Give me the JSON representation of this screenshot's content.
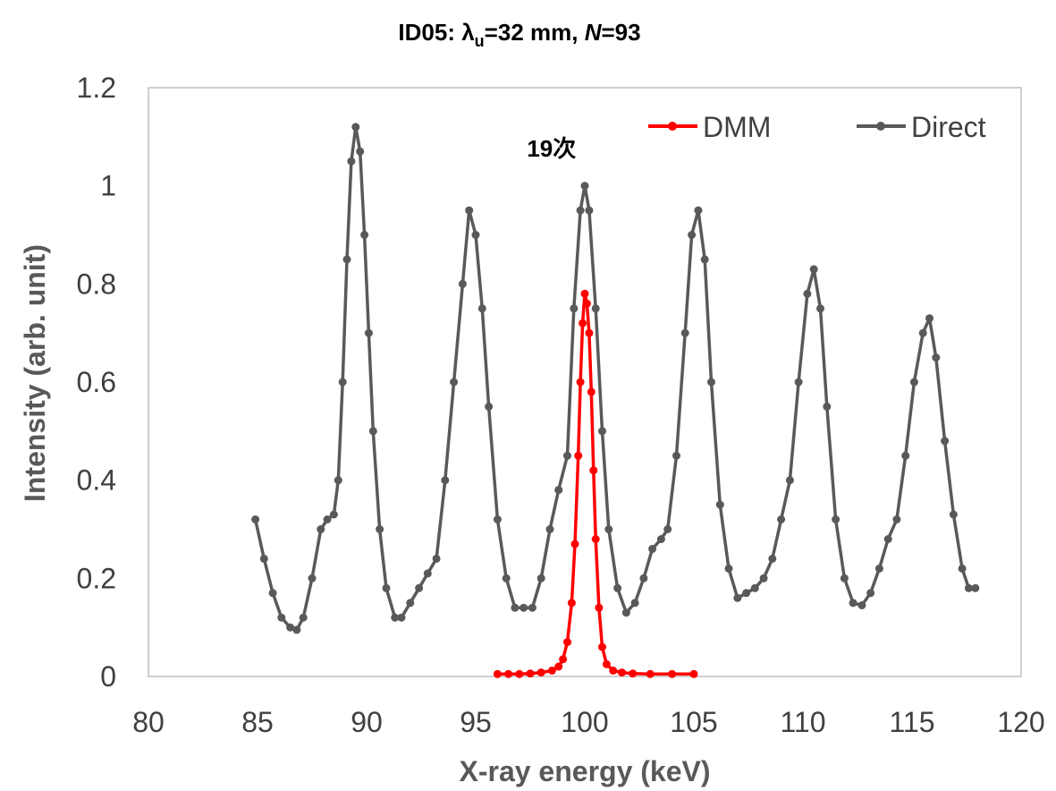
{
  "chart_data": {
    "type": "line",
    "title": {
      "prefix": "ID05: λ",
      "subscript": "u",
      "mid": "=32 mm, ",
      "italic": "N",
      "suffix": "=93"
    },
    "xlabel": "X-ray energy (keV)",
    "ylabel": "Intensity (arb. unit)",
    "xlim": [
      80,
      120
    ],
    "ylim": [
      0,
      1.2
    ],
    "xticks": [
      "80",
      "85",
      "90",
      "95",
      "100",
      "105",
      "110",
      "115",
      "120"
    ],
    "yticks": [
      "0",
      "0.2",
      "0.4",
      "0.6",
      "0.8",
      "1",
      "1.2"
    ],
    "grid": false,
    "legend_position": "top-right",
    "annotation": {
      "text": "19次",
      "x": 99.6,
      "y": 1.06
    },
    "series": [
      {
        "name": "DMM",
        "color": "#ff0000",
        "marker": "circle",
        "points": [
          [
            96.0,
            0.005
          ],
          [
            96.5,
            0.005
          ],
          [
            97.0,
            0.005
          ],
          [
            97.5,
            0.006
          ],
          [
            98.0,
            0.008
          ],
          [
            98.5,
            0.012
          ],
          [
            98.8,
            0.02
          ],
          [
            99.0,
            0.035
          ],
          [
            99.2,
            0.07
          ],
          [
            99.4,
            0.15
          ],
          [
            99.55,
            0.27
          ],
          [
            99.7,
            0.45
          ],
          [
            99.8,
            0.6
          ],
          [
            99.9,
            0.72
          ],
          [
            100.0,
            0.78
          ],
          [
            100.1,
            0.76
          ],
          [
            100.2,
            0.7
          ],
          [
            100.3,
            0.58
          ],
          [
            100.4,
            0.42
          ],
          [
            100.5,
            0.28
          ],
          [
            100.65,
            0.14
          ],
          [
            100.8,
            0.06
          ],
          [
            101.0,
            0.025
          ],
          [
            101.3,
            0.012
          ],
          [
            101.7,
            0.008
          ],
          [
            102.2,
            0.006
          ],
          [
            103.0,
            0.005
          ],
          [
            104.0,
            0.005
          ],
          [
            105.0,
            0.005
          ]
        ]
      },
      {
        "name": "Direct",
        "color": "#595959",
        "marker": "circle",
        "points": [
          [
            84.9,
            0.32
          ],
          [
            85.3,
            0.24
          ],
          [
            85.7,
            0.17
          ],
          [
            86.1,
            0.12
          ],
          [
            86.5,
            0.1
          ],
          [
            86.8,
            0.095
          ],
          [
            87.1,
            0.12
          ],
          [
            87.5,
            0.2
          ],
          [
            87.9,
            0.3
          ],
          [
            88.2,
            0.32
          ],
          [
            88.5,
            0.33
          ],
          [
            88.7,
            0.4
          ],
          [
            88.9,
            0.6
          ],
          [
            89.1,
            0.85
          ],
          [
            89.3,
            1.05
          ],
          [
            89.5,
            1.12
          ],
          [
            89.7,
            1.07
          ],
          [
            89.9,
            0.9
          ],
          [
            90.1,
            0.7
          ],
          [
            90.3,
            0.5
          ],
          [
            90.6,
            0.3
          ],
          [
            90.9,
            0.18
          ],
          [
            91.3,
            0.12
          ],
          [
            91.6,
            0.12
          ],
          [
            92.0,
            0.15
          ],
          [
            92.4,
            0.18
          ],
          [
            92.8,
            0.21
          ],
          [
            93.2,
            0.24
          ],
          [
            93.6,
            0.4
          ],
          [
            94.0,
            0.6
          ],
          [
            94.4,
            0.8
          ],
          [
            94.7,
            0.95
          ],
          [
            95.0,
            0.9
          ],
          [
            95.3,
            0.75
          ],
          [
            95.6,
            0.55
          ],
          [
            96.0,
            0.32
          ],
          [
            96.4,
            0.2
          ],
          [
            96.8,
            0.14
          ],
          [
            97.2,
            0.14
          ],
          [
            97.6,
            0.14
          ],
          [
            98.0,
            0.2
          ],
          [
            98.4,
            0.3
          ],
          [
            98.8,
            0.38
          ],
          [
            99.2,
            0.45
          ],
          [
            99.5,
            0.75
          ],
          [
            99.8,
            0.95
          ],
          [
            100.0,
            1.0
          ],
          [
            100.2,
            0.95
          ],
          [
            100.5,
            0.75
          ],
          [
            100.8,
            0.5
          ],
          [
            101.1,
            0.3
          ],
          [
            101.5,
            0.18
          ],
          [
            101.9,
            0.13
          ],
          [
            102.3,
            0.15
          ],
          [
            102.7,
            0.2
          ],
          [
            103.1,
            0.26
          ],
          [
            103.5,
            0.28
          ],
          [
            103.8,
            0.3
          ],
          [
            104.2,
            0.45
          ],
          [
            104.6,
            0.7
          ],
          [
            104.9,
            0.9
          ],
          [
            105.2,
            0.95
          ],
          [
            105.5,
            0.85
          ],
          [
            105.8,
            0.6
          ],
          [
            106.2,
            0.35
          ],
          [
            106.6,
            0.22
          ],
          [
            107.0,
            0.16
          ],
          [
            107.4,
            0.17
          ],
          [
            107.8,
            0.18
          ],
          [
            108.2,
            0.2
          ],
          [
            108.6,
            0.24
          ],
          [
            109.0,
            0.32
          ],
          [
            109.4,
            0.4
          ],
          [
            109.8,
            0.6
          ],
          [
            110.2,
            0.78
          ],
          [
            110.5,
            0.83
          ],
          [
            110.8,
            0.75
          ],
          [
            111.1,
            0.55
          ],
          [
            111.5,
            0.32
          ],
          [
            111.9,
            0.2
          ],
          [
            112.3,
            0.15
          ],
          [
            112.7,
            0.145
          ],
          [
            113.1,
            0.17
          ],
          [
            113.5,
            0.22
          ],
          [
            113.9,
            0.28
          ],
          [
            114.3,
            0.32
          ],
          [
            114.7,
            0.45
          ],
          [
            115.1,
            0.6
          ],
          [
            115.5,
            0.7
          ],
          [
            115.8,
            0.73
          ],
          [
            116.1,
            0.65
          ],
          [
            116.5,
            0.48
          ],
          [
            116.9,
            0.33
          ],
          [
            117.3,
            0.22
          ],
          [
            117.6,
            0.18
          ],
          [
            117.9,
            0.18
          ]
        ]
      }
    ]
  }
}
